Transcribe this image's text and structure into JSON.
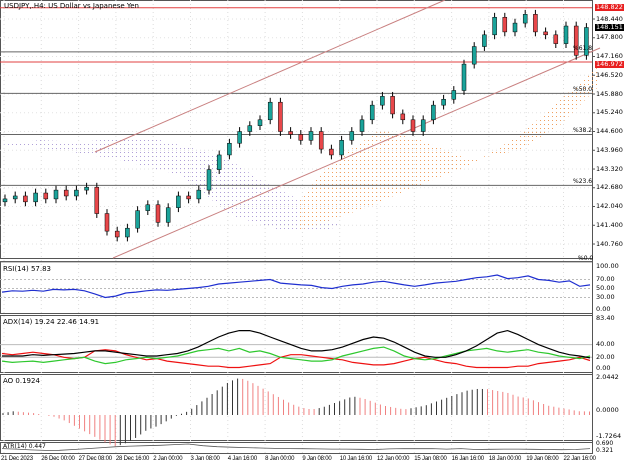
{
  "title": "USDJPY,.H4:  US Dollar vs Japanese Yen",
  "price_tags": {
    "high": "148.822",
    "current": "148.151",
    "level": "146.972"
  },
  "colors": {
    "bull": "#1aa39a",
    "bear": "#e8474a",
    "channel": "#c98080",
    "red_line": "#e24040",
    "rsi": "#1f2fd0",
    "adx": "#000000",
    "plus_di": "#2ec82e",
    "minus_di": "#ee1111",
    "ao_up": "#333333",
    "ao_down": "#f08080",
    "cloud_a": "#b0a0d8",
    "cloud_b": "#f0a060"
  },
  "price_axis": [
    "148.440",
    "147.800",
    "147.160",
    "146.520",
    "145.880",
    "145.240",
    "144.600",
    "143.960",
    "143.320",
    "142.680",
    "142.040",
    "141.400",
    "140.760"
  ],
  "fib_labels": [
    {
      "label": "%61.8",
      "price": 147.32
    },
    {
      "label": "%50.0",
      "price": 145.9
    },
    {
      "label": "%38.2",
      "price": 144.5
    },
    {
      "label": "%23.6",
      "price": 142.76
    },
    {
      "label": "%0.0",
      "price": 140.15
    }
  ],
  "chart_data": {
    "type": "candlestick",
    "closes": [
      142.3,
      142.4,
      142.2,
      142.5,
      142.3,
      142.6,
      142.4,
      142.6,
      142.7,
      141.8,
      141.2,
      141.0,
      141.3,
      141.9,
      142.1,
      141.5,
      142.0,
      142.4,
      142.3,
      142.6,
      143.3,
      143.8,
      144.2,
      144.6,
      144.8,
      145.0,
      145.6,
      144.6,
      144.5,
      144.3,
      144.6,
      144.0,
      143.8,
      144.3,
      144.6,
      145.0,
      145.5,
      145.8,
      145.2,
      145.0,
      144.6,
      145.0,
      145.5,
      145.7,
      146.0,
      146.9,
      147.5,
      147.9,
      148.5,
      148.0,
      148.3,
      148.6,
      148.0,
      147.9,
      147.6,
      148.2,
      147.2,
      148.15
    ],
    "rsi": {
      "label": "RSI(14) 57.83",
      "ticks": [
        "100.00",
        "70.00",
        "50.00",
        "30.00",
        "0.00"
      ],
      "values": [
        42,
        45,
        44,
        46,
        44,
        48,
        47,
        48,
        45,
        38,
        30,
        33,
        40,
        42,
        45,
        47,
        46,
        48,
        50,
        52,
        55,
        60,
        62,
        64,
        66,
        68,
        70,
        62,
        60,
        58,
        57,
        52,
        50,
        55,
        58,
        60,
        64,
        66,
        62,
        58,
        55,
        58,
        62,
        64,
        66,
        70,
        74,
        76,
        80,
        72,
        74,
        78,
        70,
        68,
        64,
        67,
        55,
        58
      ]
    },
    "adx": {
      "label": "ADX(14) 19.24 22.46 14.91",
      "ticks": [
        "83.40",
        "40.00",
        "20.00",
        "0.00"
      ],
      "adx": [
        22,
        22,
        22,
        24,
        23,
        24,
        25,
        26,
        28,
        30,
        30,
        28,
        26,
        24,
        22,
        22,
        24,
        26,
        30,
        36,
        44,
        52,
        58,
        62,
        62,
        58,
        52,
        46,
        40,
        34,
        30,
        30,
        32,
        36,
        42,
        48,
        52,
        50,
        44,
        36,
        28,
        22,
        20,
        20,
        24,
        30,
        38,
        48,
        58,
        62,
        56,
        48,
        40,
        34,
        28,
        24,
        22,
        19
      ],
      "plus_di": [
        14,
        12,
        13,
        14,
        12,
        14,
        16,
        18,
        20,
        14,
        10,
        12,
        16,
        18,
        20,
        18,
        20,
        22,
        26,
        30,
        32,
        34,
        30,
        34,
        28,
        30,
        26,
        20,
        18,
        16,
        14,
        14,
        16,
        22,
        26,
        30,
        34,
        36,
        30,
        22,
        18,
        16,
        18,
        22,
        26,
        30,
        32,
        34,
        30,
        28,
        30,
        32,
        28,
        26,
        22,
        20,
        18,
        22
      ],
      "minus_di": [
        26,
        24,
        26,
        28,
        26,
        24,
        20,
        18,
        20,
        30,
        32,
        30,
        24,
        20,
        16,
        18,
        14,
        12,
        10,
        8,
        6,
        6,
        4,
        4,
        6,
        8,
        10,
        20,
        24,
        24,
        22,
        20,
        18,
        16,
        12,
        10,
        8,
        8,
        10,
        14,
        18,
        20,
        16,
        12,
        10,
        6,
        4,
        4,
        4,
        4,
        6,
        6,
        10,
        12,
        14,
        16,
        20,
        15
      ]
    },
    "ao": {
      "label": "AO 0.1924",
      "ticks": [
        "2.0442",
        "0.0000",
        "-1.7264"
      ],
      "values": [
        0.1,
        0.2,
        0.15,
        0.1,
        0.0,
        -0.1,
        -0.3,
        -0.6,
        -0.9,
        -1.2,
        -1.5,
        -1.7,
        -1.5,
        -1.2,
        -0.8,
        -0.6,
        -0.3,
        0.0,
        0.2,
        0.6,
        1.0,
        1.4,
        1.8,
        2.0,
        1.8,
        1.5,
        1.2,
        0.9,
        0.6,
        0.4,
        0.3,
        0.4,
        0.6,
        0.8,
        1.0,
        0.9,
        0.7,
        0.5,
        0.4,
        0.3,
        0.4,
        0.5,
        0.7,
        0.9,
        1.1,
        1.3,
        1.4,
        1.4,
        1.3,
        1.2,
        1.0,
        0.9,
        0.7,
        0.5,
        0.4,
        0.3,
        0.2,
        0.19
      ]
    },
    "atr": {
      "label": "ATR(14) 0.447",
      "ticks": [
        "0.690",
        "0.321"
      ],
      "values": [
        0.45,
        0.42,
        0.38,
        0.35,
        0.36,
        0.4,
        0.45,
        0.5,
        0.55,
        0.58,
        0.6,
        0.62,
        0.66,
        0.69,
        0.6,
        0.55,
        0.52,
        0.5,
        0.48,
        0.46,
        0.45,
        0.44,
        0.43,
        0.42,
        0.42,
        0.41,
        0.4,
        0.43,
        0.45,
        0.44,
        0.45,
        0.42,
        0.45,
        0.4,
        0.41,
        0.42,
        0.42,
        0.41,
        0.4,
        0.39,
        0.4,
        0.45
      ]
    },
    "time_labels": [
      "21 Dec 2023",
      "26 Dec 00:00",
      "27 Dec 08:00",
      "28 Dec 16:00",
      "2 Jan 00:00",
      "3 Jan 08:00",
      "4 Jan 16:00",
      "8 Jan 00:00",
      "9 Jan 08:00",
      "10 Jan 16:00",
      "12 Jan 00:00",
      "15 Jan 08:00",
      "16 Jan 16:00",
      "18 Jan 00:00",
      "19 Jan 08:00",
      "22 Jan 16:00"
    ]
  }
}
